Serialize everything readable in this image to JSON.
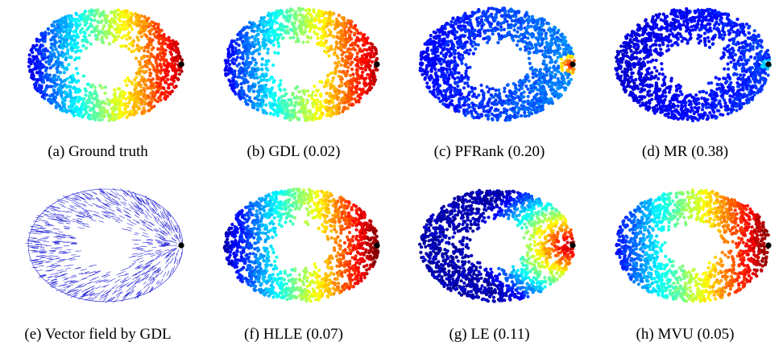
{
  "panels": [
    {
      "label": "(a)",
      "title": "Ground truth",
      "score": "",
      "scheme": "truth"
    },
    {
      "label": "(b)",
      "title": "GDL",
      "score": "(0.02)",
      "scheme": "gdl"
    },
    {
      "label": "(c)",
      "title": "PFRank",
      "score": "(0.20)",
      "scheme": "pfrank"
    },
    {
      "label": "(d)",
      "title": "MR",
      "score": "(0.38)",
      "scheme": "mr"
    },
    {
      "label": "(e)",
      "title": "Vector field by GDL",
      "score": "",
      "scheme": "vector"
    },
    {
      "label": "(f)",
      "title": "HLLE",
      "score": "(0.07)",
      "scheme": "hlle"
    },
    {
      "label": "(g)",
      "title": "LE",
      "score": "(0.11)",
      "scheme": "le"
    },
    {
      "label": "(h)",
      "title": "MVU",
      "score": "(0.05)",
      "scheme": "mvu"
    }
  ],
  "colors": {
    "query_point": "#000000",
    "vector_lines": "#1a1ad6"
  }
}
